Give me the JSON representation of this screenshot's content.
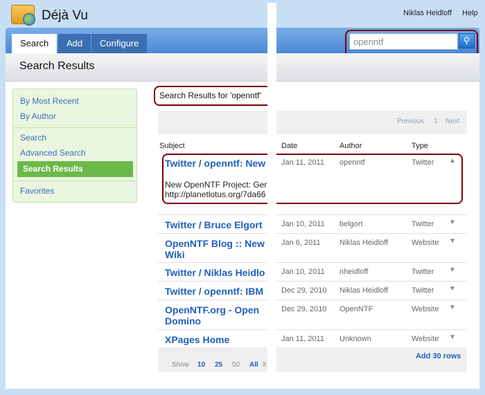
{
  "app": {
    "title": "Déjà Vu",
    "user": "Niklas Heidloff",
    "help": "Help"
  },
  "nav": {
    "tabs": [
      {
        "label": "Search"
      },
      {
        "label": "Add"
      },
      {
        "label": "Configure"
      }
    ],
    "search_value": "openntf",
    "search_icon": "magnifier-icon"
  },
  "page_title": "Search Results",
  "sidebar": {
    "items": [
      {
        "label": "By Most Recent"
      },
      {
        "label": "By Author"
      },
      {
        "label": "Search"
      },
      {
        "label": "Advanced Search"
      },
      {
        "label": "Search Results"
      },
      {
        "label": "Favorites"
      }
    ]
  },
  "results": {
    "heading": "Search Results for 'openntf'",
    "pager": {
      "previous": "Previous",
      "page": "1",
      "next": "Next"
    },
    "columns": [
      "Subject",
      "Date",
      "Author",
      "Type"
    ],
    "rows": [
      {
        "subject": "Twitter / openntf: New",
        "date": "Jan 11, 2011",
        "author": "openntf",
        "type": "Twitter",
        "snippet1": "New OpenNTF Project: Ger",
        "snippet2": "http://planetlotus.org/7da66"
      },
      {
        "subject": "Twitter / Bruce Elgort",
        "date": "Jan 10, 2011",
        "author": "belgort",
        "type": "Twitter"
      },
      {
        "subject": "OpenNTF Blog :: New Wiki",
        "date": "Jan 6, 2011",
        "author": "Niklas Heidloff",
        "type": "Website"
      },
      {
        "subject": "Twitter / Niklas Heidlo",
        "date": "Jan 10, 2011",
        "author": "nheidloff",
        "type": "Twitter"
      },
      {
        "subject": "Twitter / openntf: IBM",
        "date": "Dec 29, 2010",
        "author": "Niklas Heidloff",
        "type": "Twitter"
      },
      {
        "subject": "OpenNTF.org - Open Domino",
        "date": "Dec 29, 2010",
        "author": "OpenNTF",
        "type": "Website"
      },
      {
        "subject": "XPages Home",
        "date": "Jan 11, 2011",
        "author": "Unknown",
        "type": "Website"
      }
    ],
    "footer": {
      "show": "Show",
      "sizes": [
        "10",
        "25",
        "50",
        "All"
      ],
      "items": "it",
      "add_rows": "Add 30 rows"
    }
  },
  "colors": {
    "accent": "#1f5fbd",
    "highlight": "#7b0000",
    "sidebar_selected": "#6cb94b"
  }
}
